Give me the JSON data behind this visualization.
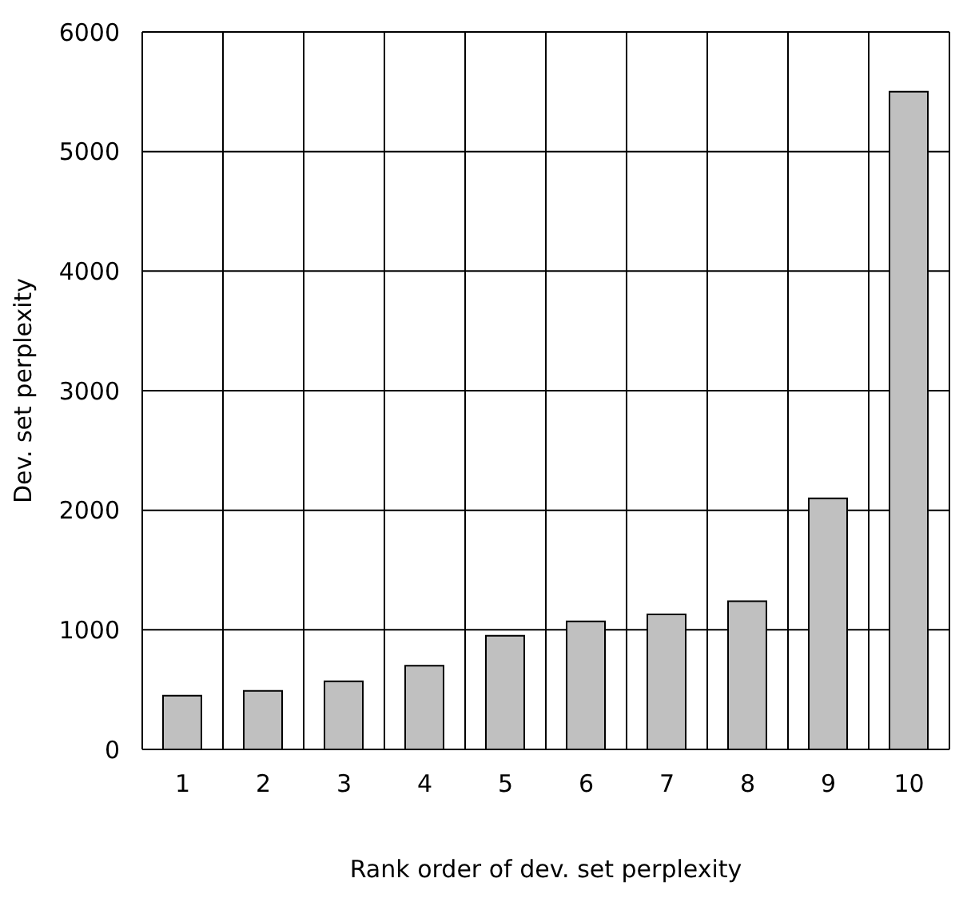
{
  "chart_data": {
    "type": "bar",
    "xlabel": "Rank order of dev. set perplexity",
    "ylabel": "Dev. set perplexity",
    "categories": [
      "1",
      "2",
      "3",
      "4",
      "5",
      "6",
      "7",
      "8",
      "9",
      "10"
    ],
    "values": [
      450,
      490,
      570,
      700,
      950,
      1070,
      1130,
      1240,
      2100,
      5500
    ],
    "color": "#c0c0c0",
    "ylim": [
      0,
      6000
    ],
    "yticks": [
      0,
      1000,
      2000,
      3000,
      4000,
      5000,
      6000
    ],
    "grid": true
  }
}
